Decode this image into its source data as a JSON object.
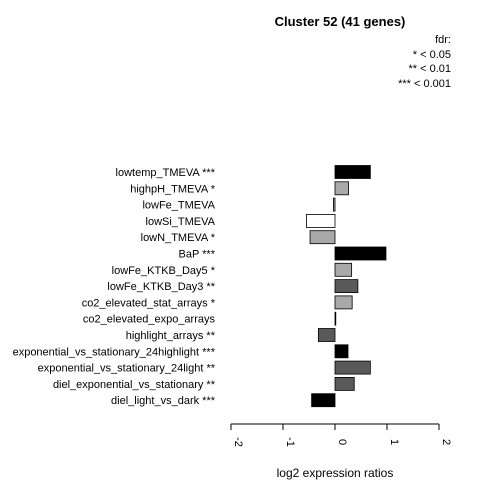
{
  "title": "Cluster 52 (41 genes)",
  "legend": {
    "heading": "fdr:",
    "entries": [
      "* < 0.05",
      "** < 0.01",
      "*** < 0.001"
    ]
  },
  "chart_data": {
    "type": "bar",
    "orientation": "horizontal",
    "xlabel": "log2 expression ratios",
    "xlim": [
      -2,
      2
    ],
    "xticks": [
      "-2",
      "-1",
      "0",
      "1",
      "2"
    ],
    "bars": [
      {
        "label": "lowtemp_TMEVA ***",
        "value": 0.68,
        "color": "#000000"
      },
      {
        "label": "highpH_TMEVA *",
        "value": 0.26,
        "color": "#a9a9a9"
      },
      {
        "label": "lowFe_TMEVA",
        "value": -0.03,
        "color": "#a9a9a9"
      },
      {
        "label": "lowSi_TMEVA",
        "value": -0.55,
        "color": "#ffffff"
      },
      {
        "label": "lowN_TMEVA *",
        "value": -0.48,
        "color": "#a9a9a9"
      },
      {
        "label": "BaP ***",
        "value": 0.98,
        "color": "#000000"
      },
      {
        "label": "lowFe_KTKB_Day5 *",
        "value": 0.32,
        "color": "#a9a9a9"
      },
      {
        "label": "lowFe_KTKB_Day3 **",
        "value": 0.44,
        "color": "#595959"
      },
      {
        "label": "co2_elevated_stat_arrays *",
        "value": 0.33,
        "color": "#a9a9a9"
      },
      {
        "label": "co2_elevated_expo_arrays",
        "value": 0.0,
        "color": "#a9a9a9"
      },
      {
        "label": "highlight_arrays **",
        "value": -0.32,
        "color": "#595959"
      },
      {
        "label": "exponential_vs_stationary_24highlight ***",
        "value": 0.25,
        "color": "#000000"
      },
      {
        "label": "exponential_vs_stationary_24light **",
        "value": 0.68,
        "color": "#595959"
      },
      {
        "label": "diel_exponential_vs_stationary **",
        "value": 0.37,
        "color": "#595959"
      },
      {
        "label": "diel_light_vs_dark ***",
        "value": -0.45,
        "color": "#000000"
      }
    ]
  }
}
